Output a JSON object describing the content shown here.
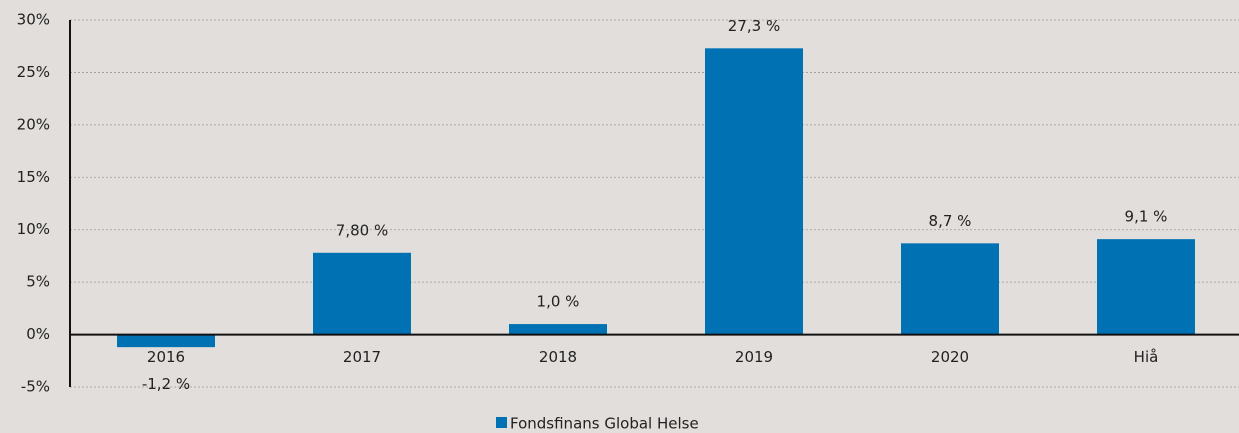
{
  "chart_data": {
    "type": "bar",
    "categories": [
      "2016",
      "2017",
      "2018",
      "2019",
      "2020",
      "Hiå"
    ],
    "series": [
      {
        "name": "Fondsfinans Global Helse",
        "color": "#0071b3",
        "values": [
          -1.2,
          7.8,
          1.0,
          27.3,
          8.7,
          9.1
        ],
        "value_labels": [
          "-1,2 %",
          "7,80 %",
          "1,0 %",
          "27,3 %",
          "8,7 %",
          "9,1 %"
        ]
      }
    ],
    "ylim": [
      -5,
      30
    ],
    "yticks": [
      {
        "value": -5,
        "label": "-5%"
      },
      {
        "value": 0,
        "label": "0%"
      },
      {
        "value": 5,
        "label": "5%"
      },
      {
        "value": 10,
        "label": "10%"
      },
      {
        "value": 15,
        "label": "15%"
      },
      {
        "value": 20,
        "label": "20%"
      },
      {
        "value": 25,
        "label": "25%"
      },
      {
        "value": 30,
        "label": "30%"
      }
    ],
    "grid": true,
    "legend": "bottom"
  }
}
